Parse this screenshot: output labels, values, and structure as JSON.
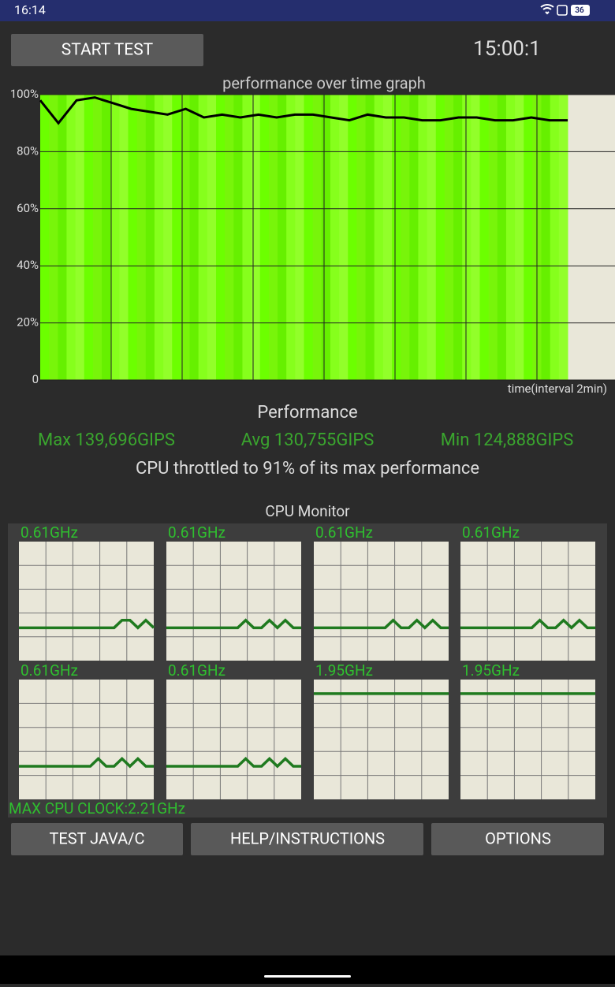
{
  "status_bar": {
    "time": "16:14",
    "battery": "36"
  },
  "start_button": "START TEST",
  "timer": "15:00:1",
  "performance_graph": {
    "type": "line",
    "title": "performance over time graph",
    "x_label": "time(interval 2min)",
    "ylim": [
      0,
      100
    ],
    "yticks": [
      0,
      {
        "value": 20,
        "label": "20%"
      },
      {
        "value": 40,
        "label": "40%"
      },
      {
        "value": 60,
        "label": "60%"
      },
      {
        "value": 80,
        "label": "80%"
      },
      {
        "value": 100,
        "label": "100%"
      }
    ],
    "color": "#000000",
    "values": [
      98,
      90,
      98,
      99,
      97,
      95,
      94,
      93,
      95,
      92,
      93,
      92,
      93,
      92,
      93,
      93,
      92,
      91,
      93,
      92,
      92,
      91,
      91,
      92,
      92,
      91,
      91,
      92,
      91,
      91
    ]
  },
  "stats": {
    "title": "Performance",
    "max": "Max 139,696GIPS",
    "avg": "Avg 130,755GIPS",
    "min": "Min 124,888GIPS",
    "summary": "CPU throttled to 91% of its max performance"
  },
  "cpu_monitor": {
    "title": "CPU Monitor",
    "ylim": [
      0,
      2.21
    ],
    "cores": [
      {
        "clock": "0.61GHz",
        "values": [
          0.61,
          0.61,
          0.61,
          0.61,
          0.61,
          0.61,
          0.61,
          0.61,
          0.61,
          0.61,
          0.61,
          0.61,
          0.61,
          0.75,
          0.75,
          0.61,
          0.75,
          0.61
        ]
      },
      {
        "clock": "0.61GHz",
        "values": [
          0.61,
          0.61,
          0.61,
          0.61,
          0.61,
          0.61,
          0.61,
          0.61,
          0.61,
          0.61,
          0.75,
          0.61,
          0.61,
          0.75,
          0.61,
          0.75,
          0.61,
          0.61
        ]
      },
      {
        "clock": "0.61GHz",
        "values": [
          0.61,
          0.61,
          0.61,
          0.61,
          0.61,
          0.61,
          0.61,
          0.61,
          0.61,
          0.61,
          0.75,
          0.61,
          0.61,
          0.75,
          0.61,
          0.75,
          0.61,
          0.61
        ]
      },
      {
        "clock": "0.61GHz",
        "values": [
          0.61,
          0.61,
          0.61,
          0.61,
          0.61,
          0.61,
          0.61,
          0.61,
          0.61,
          0.61,
          0.75,
          0.61,
          0.61,
          0.75,
          0.61,
          0.75,
          0.61,
          0.61
        ]
      },
      {
        "clock": "0.61GHz",
        "values": [
          0.61,
          0.61,
          0.61,
          0.61,
          0.61,
          0.61,
          0.61,
          0.61,
          0.61,
          0.61,
          0.75,
          0.61,
          0.61,
          0.75,
          0.61,
          0.75,
          0.61,
          0.61
        ]
      },
      {
        "clock": "0.61GHz",
        "values": [
          0.61,
          0.61,
          0.61,
          0.61,
          0.61,
          0.61,
          0.61,
          0.61,
          0.61,
          0.61,
          0.75,
          0.61,
          0.61,
          0.75,
          0.61,
          0.75,
          0.61,
          0.61
        ]
      },
      {
        "clock": "1.95GHz",
        "values": [
          1.95,
          1.95,
          1.95,
          1.95,
          1.95,
          1.95,
          1.95,
          1.95,
          1.95,
          1.95,
          1.95,
          1.95,
          1.95,
          1.95,
          1.95,
          1.95,
          1.95,
          1.95
        ]
      },
      {
        "clock": "1.95GHz",
        "values": [
          1.95,
          1.95,
          1.95,
          1.95,
          1.95,
          1.95,
          1.95,
          1.95,
          1.95,
          1.95,
          1.95,
          1.95,
          1.95,
          1.95,
          1.95,
          1.95,
          1.95,
          1.95
        ]
      }
    ],
    "max_clock": "MAX CPU CLOCK:2.21GHz"
  },
  "buttons": [
    "TEST JAVA/C",
    "HELP/INSTRUCTIONS",
    "OPTIONS"
  ]
}
